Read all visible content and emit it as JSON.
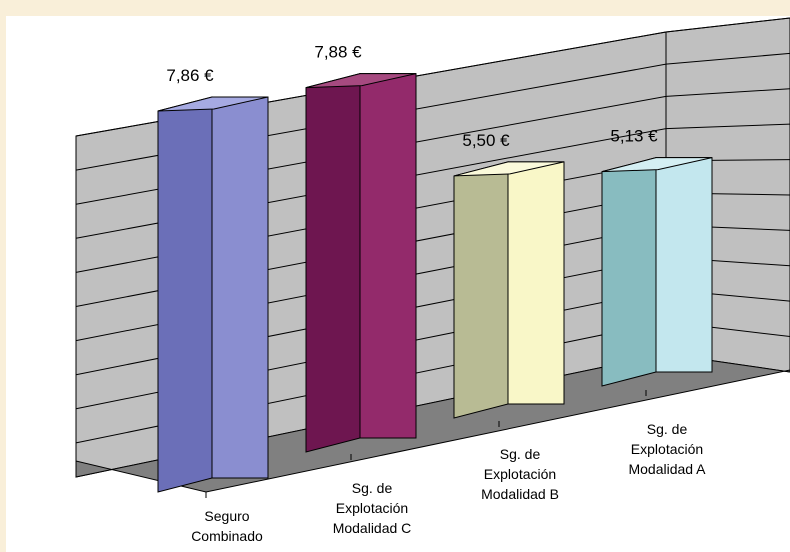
{
  "chart_data": {
    "type": "bar",
    "variant": "3d-column",
    "title": "",
    "xlabel": "",
    "ylabel": "",
    "categories": [
      [
        "Seguro",
        "Combinado"
      ],
      [
        "Sg. de",
        "Explotación",
        "Modalidad C"
      ],
      [
        "Sg. de",
        "Explotación",
        "Modalidad B"
      ],
      [
        "Sg. de",
        "Explotación",
        "Modalidad A"
      ]
    ],
    "values": [
      7.86,
      7.88,
      5.5,
      5.13
    ],
    "value_labels": [
      "7,86 €",
      "7,88 €",
      "5,50 €",
      "5,13 €"
    ],
    "ylim": [
      0,
      10
    ],
    "grid": true,
    "legend": "none",
    "colors": [
      {
        "front": "#8a8ed0",
        "side": "#6b6fb8",
        "top": "#a6aae2"
      },
      {
        "front": "#932a6b",
        "side": "#6e1650",
        "top": "#a64a80"
      },
      {
        "front": "#f9f7c8",
        "side": "#b8bb94",
        "top": "#fbfadb"
      },
      {
        "front": "#c3e7ee",
        "side": "#88bcc0",
        "top": "#d4eff3"
      }
    ],
    "wall_color": "#c0c0c0",
    "floor_color": "#808080"
  }
}
